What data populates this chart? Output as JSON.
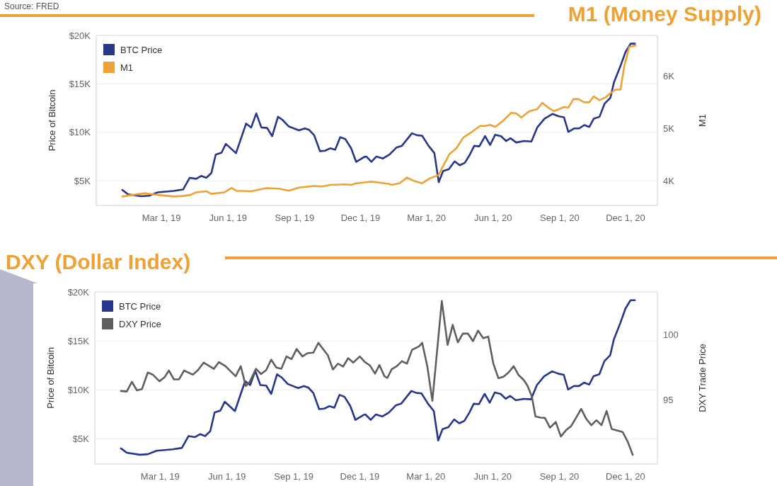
{
  "chart_data": [
    {
      "type": "line",
      "title": "M1 (Money Supply)",
      "annotations": [
        "Source: FRED"
      ],
      "ylabel": "Price of Bitcoin",
      "y2label": "M1",
      "xlim": [
        "2018-12-01",
        "2021-01-14"
      ],
      "xticks": [
        {
          "value": "2019-03-01",
          "label": "Mar 1, 19"
        },
        {
          "value": "2019-06-01",
          "label": "Jun 1, 19"
        },
        {
          "value": "2019-09-01",
          "label": "Sep 1, 19"
        },
        {
          "value": "2019-12-01",
          "label": "Dec 1, 19"
        },
        {
          "value": "2020-03-01",
          "label": "Mar 1, 20"
        },
        {
          "value": "2020-06-01",
          "label": "Jun 1, 20"
        },
        {
          "value": "2020-09-01",
          "label": "Sep 1, 20"
        },
        {
          "value": "2020-12-01",
          "label": "Dec 1, 20"
        }
      ],
      "ylim": [
        2450,
        20000
      ],
      "yticks": [
        {
          "value": 5000,
          "label": "$5K"
        },
        {
          "value": 10000,
          "label": "$10K"
        },
        {
          "value": 15000,
          "label": "$15K"
        },
        {
          "value": 20000,
          "label": "$20K"
        }
      ],
      "y2lim": [
        3540,
        6770
      ],
      "y2ticks": [
        {
          "value": 4000,
          "label": "4K"
        },
        {
          "value": 5000,
          "label": "5K"
        },
        {
          "value": 6000,
          "label": "6K"
        }
      ],
      "grid": "y",
      "legend": "top left",
      "series": [
        {
          "name": "BTC Price",
          "color": "#27358a",
          "x": [
            "2019-01-06",
            "2019-01-14",
            "2019-02-01",
            "2019-02-12",
            "2019-02-24",
            "2019-03-18",
            "2019-03-31",
            "2019-04-09",
            "2019-04-18",
            "2019-04-25",
            "2019-05-02",
            "2019-05-09",
            "2019-05-15",
            "2019-05-23",
            "2019-05-29",
            "2019-06-12",
            "2019-06-26",
            "2019-07-03",
            "2019-07-10",
            "2019-07-17",
            "2019-07-25",
            "2019-08-01",
            "2019-08-09",
            "2019-08-15",
            "2019-08-24",
            "2019-09-07",
            "2019-09-15",
            "2019-09-21",
            "2019-09-28",
            "2019-10-06",
            "2019-10-13",
            "2019-10-20",
            "2019-10-27",
            "2019-11-03",
            "2019-11-10",
            "2019-11-18",
            "2019-11-25",
            "2019-12-06",
            "2019-12-09",
            "2019-12-16",
            "2019-12-23",
            "2020-01-01",
            "2020-01-10",
            "2020-01-20",
            "2020-01-27",
            "2020-02-10",
            "2020-02-17",
            "2020-02-24",
            "2020-03-04",
            "2020-03-12",
            "2020-03-18",
            "2020-03-24",
            "2020-04-01",
            "2020-04-09",
            "2020-04-16",
            "2020-04-23",
            "2020-04-30",
            "2020-05-06",
            "2020-05-13",
            "2020-05-21",
            "2020-05-28",
            "2020-06-04",
            "2020-06-12",
            "2020-06-19",
            "2020-06-25",
            "2020-07-03",
            "2020-07-14",
            "2020-07-24",
            "2020-08-01",
            "2020-08-11",
            "2020-08-22",
            "2020-08-31",
            "2020-09-07",
            "2020-09-13",
            "2020-09-21",
            "2020-09-28",
            "2020-10-05",
            "2020-10-12",
            "2020-10-18",
            "2020-10-26",
            "2020-11-02",
            "2020-11-10",
            "2020-11-15",
            "2020-11-24",
            "2020-12-01",
            "2020-12-08",
            "2020-12-14"
          ],
          "values": [
            4050,
            3600,
            3400,
            3450,
            3800,
            3950,
            4100,
            5300,
            5200,
            5500,
            5300,
            5800,
            7700,
            7900,
            8800,
            7850,
            10900,
            10500,
            11950,
            10500,
            10450,
            9600,
            11600,
            11300,
            10600,
            10200,
            10400,
            10250,
            9700,
            8050,
            8100,
            8350,
            8200,
            9500,
            9300,
            8350,
            6950,
            7450,
            7500,
            6950,
            7500,
            7300,
            7700,
            8450,
            8600,
            9900,
            9700,
            9650,
            8600,
            7850,
            4850,
            6000,
            6200,
            7000,
            6600,
            6850,
            7700,
            8600,
            8550,
            9600,
            8700,
            9750,
            9600,
            9100,
            9400,
            8950,
            9100,
            9050,
            10500,
            11400,
            11900,
            11650,
            11550,
            10050,
            10400,
            10400,
            10750,
            10550,
            11400,
            11600,
            12950,
            13550,
            15150,
            16850,
            18300,
            19150,
            19150
          ]
        },
        {
          "name": "M1",
          "color": "#eea236",
          "axis": "y2",
          "x": [
            "2019-01-06",
            "2019-01-20",
            "2019-02-06",
            "2019-02-24",
            "2019-03-18",
            "2019-03-31",
            "2019-04-10",
            "2019-04-18",
            "2019-05-02",
            "2019-05-09",
            "2019-05-27",
            "2019-06-06",
            "2019-06-12",
            "2019-07-03",
            "2019-07-24",
            "2019-08-10",
            "2019-08-24",
            "2019-09-07",
            "2019-09-28",
            "2019-10-09",
            "2019-10-20",
            "2019-11-10",
            "2019-11-18",
            "2019-11-25",
            "2019-12-16",
            "2019-12-23",
            "2020-01-09",
            "2020-01-13",
            "2020-01-24",
            "2020-02-03",
            "2020-02-14",
            "2020-02-24",
            "2020-03-05",
            "2020-03-18",
            "2020-03-24",
            "2020-04-02",
            "2020-04-11",
            "2020-04-21",
            "2020-04-30",
            "2020-05-14",
            "2020-05-21",
            "2020-05-28",
            "2020-06-04",
            "2020-06-15",
            "2020-06-26",
            "2020-07-03",
            "2020-07-10",
            "2020-07-21",
            "2020-08-01",
            "2020-08-08",
            "2020-08-15",
            "2020-08-24",
            "2020-09-07",
            "2020-09-13",
            "2020-09-20",
            "2020-09-27",
            "2020-10-05",
            "2020-10-12",
            "2020-10-18",
            "2020-10-26",
            "2020-11-03",
            "2020-11-10",
            "2020-11-17",
            "2020-11-24",
            "2020-11-29",
            "2020-12-06",
            "2020-12-15"
          ],
          "values": [
            3710,
            3740,
            3770,
            3740,
            3710,
            3720,
            3740,
            3790,
            3810,
            3760,
            3790,
            3870,
            3820,
            3810,
            3870,
            3860,
            3820,
            3880,
            3910,
            3900,
            3930,
            3940,
            3930,
            3960,
            3990,
            3980,
            3950,
            3930,
            3960,
            4070,
            4000,
            3960,
            4050,
            4120,
            4290,
            4520,
            4620,
            4830,
            4910,
            5050,
            5050,
            5070,
            5030,
            5150,
            5300,
            5290,
            5210,
            5330,
            5370,
            5490,
            5410,
            5330,
            5410,
            5400,
            5560,
            5560,
            5500,
            5500,
            5610,
            5540,
            5590,
            5670,
            5740,
            5740,
            6170,
            6550,
            6580
          ]
        }
      ]
    },
    {
      "type": "line",
      "title": "DXY (Dollar Index)",
      "ylabel": "Price of Bitcoin",
      "y2label": "DXY Trade Price",
      "xlim": [
        "2018-12-01",
        "2021-01-14"
      ],
      "xticks": [
        {
          "value": "2019-03-01",
          "label": "Mar 1, 19"
        },
        {
          "value": "2019-06-01",
          "label": "Jun 1, 19"
        },
        {
          "value": "2019-09-01",
          "label": "Sep 1, 19"
        },
        {
          "value": "2019-12-01",
          "label": "Dec 1, 19"
        },
        {
          "value": "2020-03-01",
          "label": "Mar 1, 20"
        },
        {
          "value": "2020-06-01",
          "label": "Jun 1, 20"
        },
        {
          "value": "2020-09-01",
          "label": "Sep 1, 20"
        },
        {
          "value": "2020-12-01",
          "label": "Dec 1, 20"
        }
      ],
      "ylim": [
        2450,
        20000
      ],
      "yticks": [
        {
          "value": 5000,
          "label": "$5K"
        },
        {
          "value": 10000,
          "label": "$10K"
        },
        {
          "value": 15000,
          "label": "$15K"
        },
        {
          "value": 20000,
          "label": "$20K"
        }
      ],
      "y2lim": [
        90.1,
        103.3
      ],
      "y2ticks": [
        95,
        100
      ],
      "grid": "y",
      "legend": "top left",
      "series": [
        {
          "name": "BTC Price",
          "color": "#27358a",
          "x": [
            "2019-01-06",
            "2019-01-14",
            "2019-02-01",
            "2019-02-12",
            "2019-02-24",
            "2019-03-18",
            "2019-03-31",
            "2019-04-09",
            "2019-04-18",
            "2019-04-25",
            "2019-05-02",
            "2019-05-09",
            "2019-05-15",
            "2019-05-23",
            "2019-05-29",
            "2019-06-12",
            "2019-06-26",
            "2019-07-03",
            "2019-07-10",
            "2019-07-17",
            "2019-07-25",
            "2019-08-01",
            "2019-08-09",
            "2019-08-15",
            "2019-08-24",
            "2019-09-07",
            "2019-09-15",
            "2019-09-21",
            "2019-09-28",
            "2019-10-06",
            "2019-10-13",
            "2019-10-20",
            "2019-10-27",
            "2019-11-03",
            "2019-11-10",
            "2019-11-18",
            "2019-11-25",
            "2019-12-06",
            "2019-12-09",
            "2019-12-16",
            "2019-12-23",
            "2020-01-01",
            "2020-01-10",
            "2020-01-20",
            "2020-01-27",
            "2020-02-10",
            "2020-02-17",
            "2020-02-24",
            "2020-03-04",
            "2020-03-12",
            "2020-03-18",
            "2020-03-24",
            "2020-04-01",
            "2020-04-09",
            "2020-04-16",
            "2020-04-23",
            "2020-04-30",
            "2020-05-06",
            "2020-05-13",
            "2020-05-21",
            "2020-05-28",
            "2020-06-04",
            "2020-06-12",
            "2020-06-19",
            "2020-06-25",
            "2020-07-03",
            "2020-07-14",
            "2020-07-24",
            "2020-08-01",
            "2020-08-11",
            "2020-08-22",
            "2020-08-31",
            "2020-09-07",
            "2020-09-13",
            "2020-09-21",
            "2020-09-28",
            "2020-10-05",
            "2020-10-12",
            "2020-10-18",
            "2020-10-26",
            "2020-11-02",
            "2020-11-10",
            "2020-11-15",
            "2020-11-24",
            "2020-12-01",
            "2020-12-08",
            "2020-12-14"
          ],
          "values": [
            4050,
            3600,
            3400,
            3450,
            3800,
            3950,
            4100,
            5300,
            5200,
            5500,
            5300,
            5800,
            7700,
            7900,
            8800,
            7850,
            10900,
            10500,
            11950,
            10500,
            10450,
            9600,
            11600,
            11300,
            10600,
            10200,
            10400,
            10250,
            9700,
            8050,
            8100,
            8350,
            8200,
            9500,
            9300,
            8350,
            6950,
            7450,
            7500,
            6950,
            7500,
            7300,
            7700,
            8450,
            8600,
            9900,
            9700,
            9650,
            8600,
            7850,
            4850,
            6000,
            6200,
            7000,
            6600,
            6850,
            7700,
            8600,
            8550,
            9600,
            8700,
            9750,
            9600,
            9100,
            9400,
            8950,
            9100,
            9050,
            10500,
            11400,
            11900,
            11650,
            11550,
            10050,
            10400,
            10400,
            10750,
            10550,
            11400,
            11600,
            12950,
            13550,
            15150,
            16850,
            18300,
            19150,
            19150
          ]
        },
        {
          "name": "DXY Price",
          "color": "#5f5f5f",
          "axis": "y2",
          "x": [
            "2019-01-06",
            "2019-01-14",
            "2019-01-21",
            "2019-01-28",
            "2019-02-04",
            "2019-02-12",
            "2019-02-19",
            "2019-02-28",
            "2019-03-07",
            "2019-03-13",
            "2019-03-20",
            "2019-03-27",
            "2019-04-03",
            "2019-04-15",
            "2019-04-22",
            "2019-04-30",
            "2019-05-14",
            "2019-05-21",
            "2019-05-30",
            "2019-06-13",
            "2019-06-20",
            "2019-06-27",
            "2019-07-02",
            "2019-07-11",
            "2019-07-18",
            "2019-07-25",
            "2019-08-01",
            "2019-08-08",
            "2019-08-15",
            "2019-08-22",
            "2019-08-29",
            "2019-09-05",
            "2019-09-13",
            "2019-09-20",
            "2019-09-28",
            "2019-10-05",
            "2019-10-18",
            "2019-10-25",
            "2019-11-01",
            "2019-11-08",
            "2019-11-15",
            "2019-11-22",
            "2019-12-01",
            "2019-12-08",
            "2019-12-15",
            "2019-12-22",
            "2019-12-28",
            "2020-01-04",
            "2020-01-08",
            "2020-01-14",
            "2020-01-21",
            "2020-01-28",
            "2020-02-04",
            "2020-02-11",
            "2020-02-21",
            "2020-02-25",
            "2020-03-03",
            "2020-03-10",
            "2020-03-23",
            "2020-03-31",
            "2020-04-07",
            "2020-04-14",
            "2020-04-21",
            "2020-04-28",
            "2020-05-05",
            "2020-05-12",
            "2020-05-19",
            "2020-05-26",
            "2020-06-02",
            "2020-06-09",
            "2020-06-16",
            "2020-06-23",
            "2020-06-30",
            "2020-07-07",
            "2020-07-14",
            "2020-07-19",
            "2020-07-25",
            "2020-07-30",
            "2020-08-06",
            "2020-08-12",
            "2020-08-19",
            "2020-08-27",
            "2020-09-03",
            "2020-09-10",
            "2020-09-17",
            "2020-09-24",
            "2020-10-01",
            "2020-10-08",
            "2020-10-15",
            "2020-10-22",
            "2020-10-29",
            "2020-11-05",
            "2020-11-12",
            "2020-11-27",
            "2020-12-04",
            "2020-12-11"
          ],
          "values": [
            95.7,
            95.66,
            96.4,
            95.75,
            95.85,
            97.12,
            96.95,
            96.45,
            96.75,
            97.27,
            96.59,
            96.6,
            97.27,
            96.95,
            97.3,
            97.88,
            97.4,
            97.92,
            97.6,
            96.83,
            97.6,
            96.08,
            96.37,
            97.4,
            97.0,
            97.3,
            98.1,
            97.5,
            97.4,
            98.35,
            98.15,
            98.92,
            98.35,
            98.6,
            98.64,
            99.39,
            98.44,
            97.35,
            97.8,
            97.57,
            98.22,
            97.88,
            98.35,
            97.92,
            97.66,
            97.03,
            97.69,
            96.83,
            96.7,
            97.37,
            97.6,
            97.98,
            97.8,
            98.85,
            99.14,
            99.39,
            97.6,
            94.95,
            102.6,
            99.23,
            100.77,
            99.43,
            100.1,
            100.1,
            99.53,
            100.33,
            99.75,
            99.87,
            97.79,
            96.68,
            96.8,
            97.12,
            97.6,
            96.9,
            96.54,
            96.1,
            95.29,
            93.75,
            93.66,
            93.64,
            92.89,
            93.32,
            92.21,
            92.69,
            93.0,
            93.65,
            94.33,
            93.56,
            93.08,
            93.46,
            93.08,
            94.17,
            92.79,
            92.56,
            91.83,
            90.81
          ]
        }
      ]
    }
  ]
}
